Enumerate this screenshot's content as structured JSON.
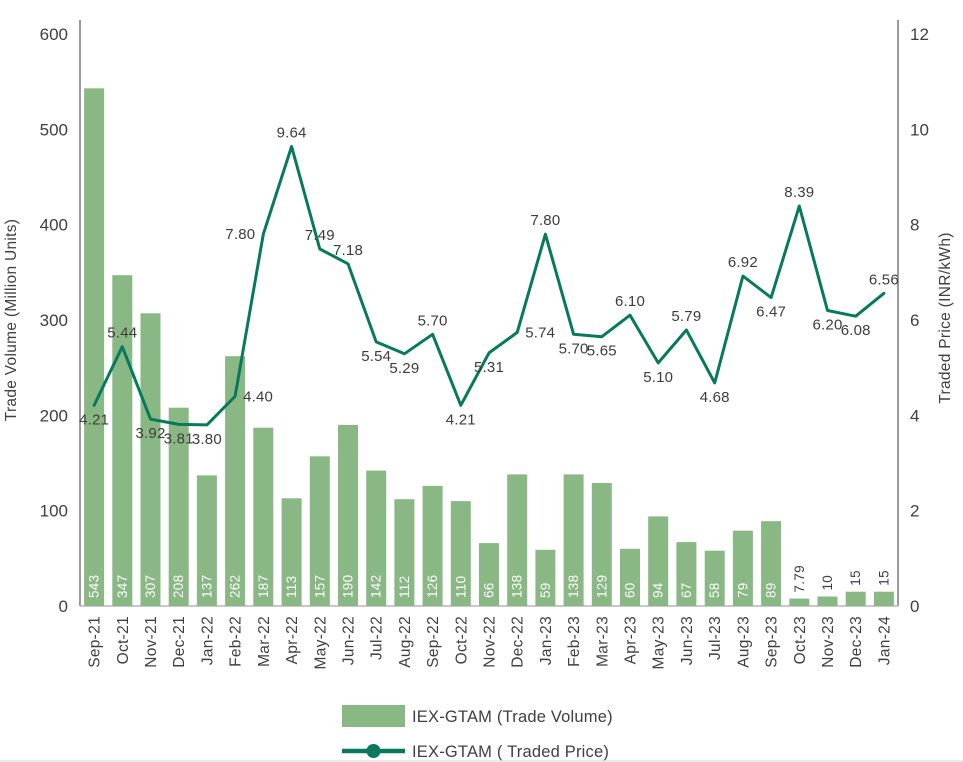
{
  "axes": {
    "left_ticks": [
      0,
      100,
      200,
      300,
      400,
      500,
      600
    ],
    "right_ticks": [
      0,
      2,
      4,
      6,
      8,
      10,
      12
    ]
  },
  "legend": [
    {
      "label": "IEX-GTAM (Trade Volume)",
      "type": "bar",
      "color": "#8ab884",
      "icon": "green-swatch"
    },
    {
      "label": "IEX-GTAM ( Traded Price)",
      "type": "line",
      "color": "#077a5e",
      "icon": "line-with-marker"
    }
  ],
  "chart_data": {
    "type": "bar",
    "subtype": "combo-bar-line-dual-axis",
    "title": "",
    "categories": [
      "Sep-21",
      "Oct-21",
      "Nov-21",
      "Dec-21",
      "Jan-22",
      "Feb-22",
      "Mar-22",
      "Apr-22",
      "May-22",
      "Jun-22",
      "Jul-22",
      "Aug-22",
      "Sep-22",
      "Oct-22",
      "Nov-22",
      "Dec-22",
      "Jan-23",
      "Feb-23",
      "Mar-23",
      "Apr-23",
      "May-23",
      "Jun-23",
      "Jul-23",
      "Aug-23",
      "Sep-23",
      "Oct-23",
      "Nov-23",
      "Dec-23",
      "Jan-24"
    ],
    "series": [
      {
        "name": "IEX-GTAM (Trade Volume)",
        "type": "bar",
        "axis": "left",
        "color": "#8ab884",
        "values": [
          543,
          347,
          307,
          208,
          137,
          262,
          187,
          113,
          157,
          190,
          142,
          112,
          126,
          110,
          66,
          138,
          59,
          138,
          129,
          60,
          94,
          67,
          58,
          79,
          89,
          7.79,
          10,
          15,
          15
        ]
      },
      {
        "name": "IEX-GTAM ( Traded Price)",
        "type": "line",
        "axis": "right",
        "color": "#077a5e",
        "values": [
          4.21,
          5.44,
          3.92,
          3.81,
          3.8,
          4.4,
          7.8,
          9.64,
          7.49,
          7.18,
          5.54,
          5.29,
          5.7,
          4.21,
          5.31,
          5.74,
          7.8,
          5.7,
          5.65,
          6.1,
          5.1,
          5.79,
          4.68,
          6.92,
          6.47,
          8.39,
          6.2,
          6.08,
          6.56
        ],
        "label_side": [
          "below",
          "above",
          "below",
          "below",
          "below",
          "right",
          "left",
          "above",
          "above",
          "above",
          "below",
          "below",
          "above",
          "below",
          "below",
          "right",
          "above",
          "below",
          "below",
          "above",
          "below",
          "above",
          "below",
          "above",
          "below",
          "above",
          "below",
          "below",
          "above"
        ]
      }
    ],
    "left_axis": {
      "title": "Trade Volume (Million Units)",
      "min": 0,
      "max": 600,
      "step": 100
    },
    "right_axis": {
      "title": "Traded Price (INR/kWh)",
      "min": 0,
      "max": 12,
      "step": 2
    },
    "grid": false,
    "legend_position": "bottom-center",
    "x_label_rotation": -90,
    "bar_labels_inside_color": "#ffffff",
    "bar_labels_outside_color": "#404040"
  }
}
